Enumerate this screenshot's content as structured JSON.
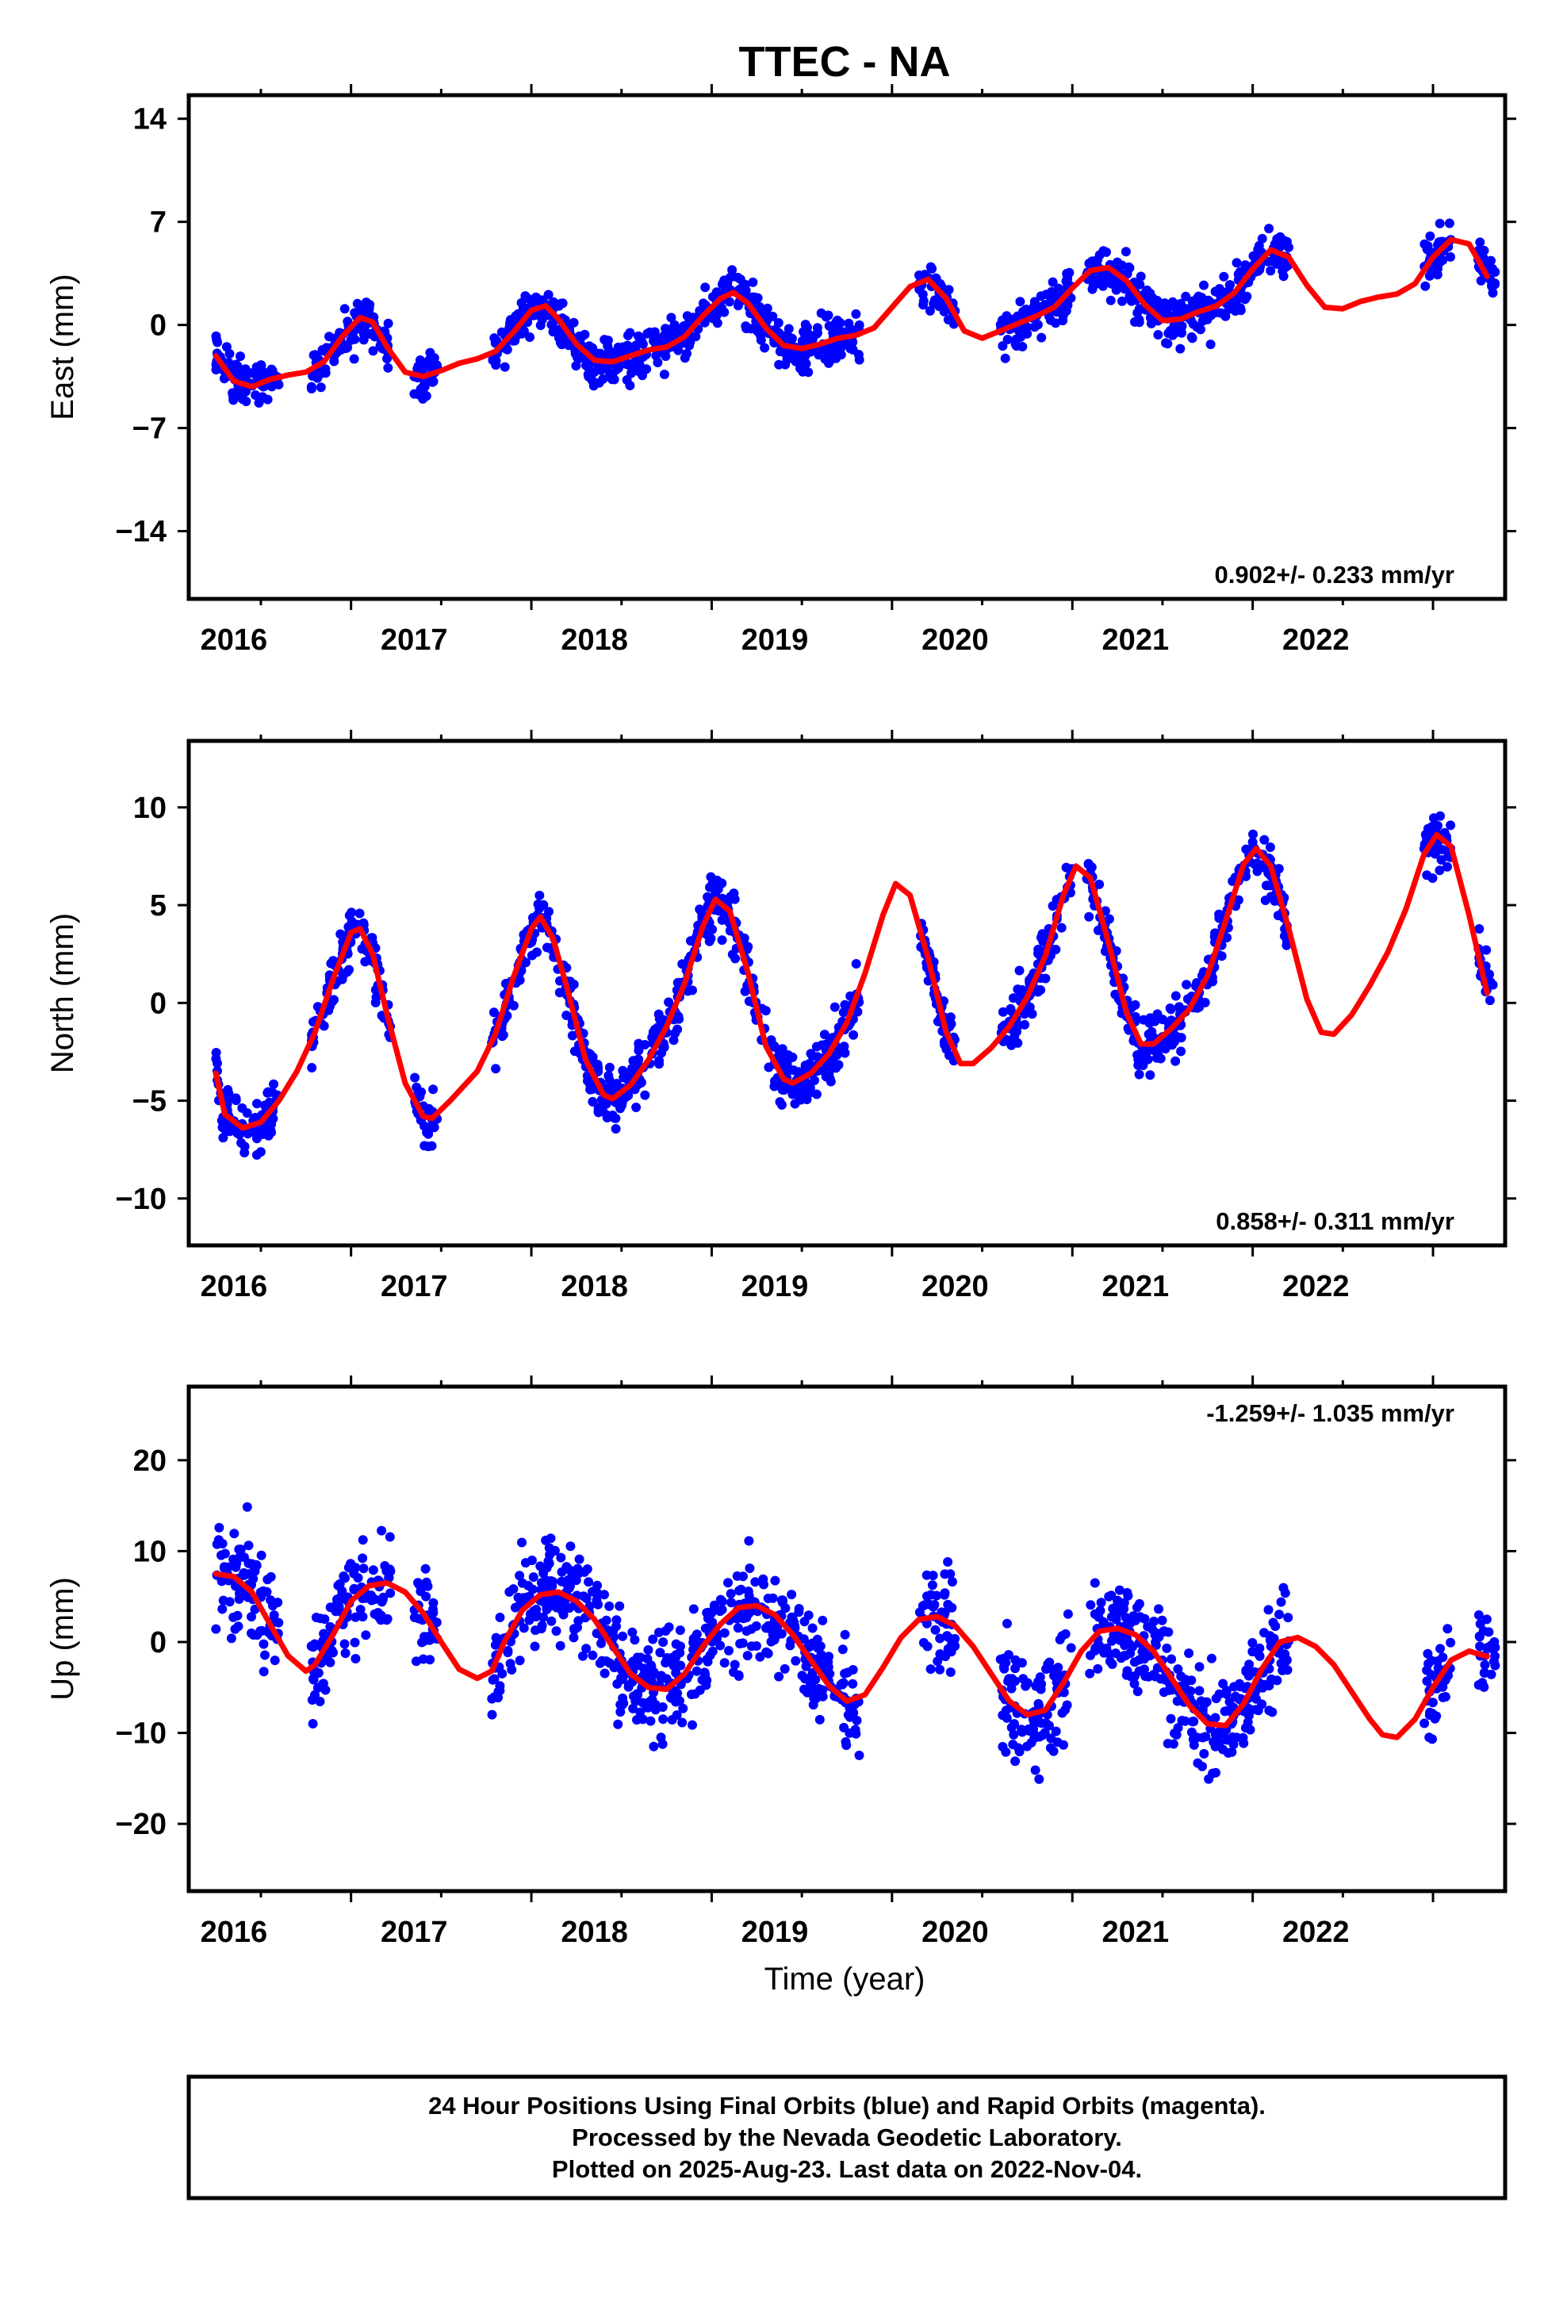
{
  "chart_data": {
    "type": "scatter",
    "title": "TTEC - NA",
    "x_tick_labels": [
      "2016",
      "2017",
      "2018",
      "2019",
      "2020",
      "2021",
      "2022"
    ],
    "xlim": [
      2015.6,
      2022.9
    ],
    "xlabel": "Time (year)",
    "point_color": "#0000ff",
    "model_color": "#ff0000",
    "panels": [
      {
        "name": "East",
        "ylabel": "East (mm)",
        "ylim": [
          -18.6,
          15.6
        ],
        "y_ticks": [
          14,
          7,
          0,
          -7,
          -14
        ],
        "y_tick_labels": [
          "14",
          "7",
          "0",
          "−7",
          "−14"
        ],
        "rate": "0.902+/- 0.233 mm/yr",
        "rate_position": "bottom-right",
        "model": {
          "x": [
            2015.75,
            2015.85,
            2015.95,
            2016.05,
            2016.15,
            2016.25,
            2016.35,
            2016.45,
            2016.55,
            2016.62,
            2016.7,
            2016.8,
            2016.9,
            2017.0,
            2017.1,
            2017.2,
            2017.3,
            2017.4,
            2017.5,
            2017.58,
            2017.65,
            2017.75,
            2017.85,
            2017.95,
            2018.05,
            2018.15,
            2018.25,
            2018.35,
            2018.45,
            2018.55,
            2018.62,
            2018.7,
            2018.8,
            2018.9,
            2019.0,
            2019.1,
            2019.2,
            2019.3,
            2019.4,
            2019.5,
            2019.6,
            2019.7,
            2019.8,
            2019.9,
            2020.0,
            2020.1,
            2020.2,
            2020.3,
            2020.4,
            2020.5,
            2020.6,
            2020.7,
            2020.8,
            2020.9,
            2021.0,
            2021.1,
            2021.2,
            2021.3,
            2021.4,
            2021.5,
            2021.6,
            2021.7,
            2021.8,
            2021.9,
            2022.0,
            2022.1,
            2022.2,
            2022.3,
            2022.4,
            2022.5,
            2022.6,
            2022.7,
            2022.8
          ],
          "y": [
            -2.1,
            -3.8,
            -4.2,
            -3.7,
            -3.4,
            -3.2,
            -2.5,
            -0.8,
            0.5,
            0.2,
            -1.5,
            -3.2,
            -3.5,
            -3.1,
            -2.6,
            -2.3,
            -1.8,
            -0.5,
            1.0,
            1.3,
            0.4,
            -1.3,
            -2.4,
            -2.5,
            -2.1,
            -1.7,
            -1.5,
            -0.8,
            0.6,
            1.8,
            2.2,
            1.5,
            -0.2,
            -1.4,
            -1.6,
            -1.3,
            -0.9,
            -0.7,
            -0.2,
            1.2,
            2.6,
            3.1,
            1.8,
            -0.4,
            -0.9,
            -0.4,
            0.1,
            0.6,
            1.2,
            2.5,
            3.7,
            3.9,
            3.0,
            1.4,
            0.3,
            0.4,
            0.9,
            1.3,
            2.2,
            3.8,
            5.1,
            4.6,
            2.7,
            1.2,
            1.1,
            1.6,
            1.9,
            2.1,
            2.8,
            4.6,
            5.8,
            5.5,
            3.3
          ]
        }
      },
      {
        "name": "North",
        "ylabel": "North (mm)",
        "ylim": [
          -12.4,
          13.4
        ],
        "y_ticks": [
          10,
          5,
          0,
          -5,
          -10
        ],
        "y_tick_labels": [
          "10",
          "5",
          "0",
          "−5",
          "−10"
        ],
        "rate": "0.858+/- 0.311 mm/yr",
        "rate_position": "bottom-right",
        "model": {
          "x": [
            2015.75,
            2015.8,
            2015.9,
            2016.0,
            2016.1,
            2016.2,
            2016.3,
            2016.4,
            2016.5,
            2016.55,
            2016.62,
            2016.7,
            2016.8,
            2016.9,
            2016.95,
            2017.05,
            2017.2,
            2017.3,
            2017.4,
            2017.5,
            2017.55,
            2017.62,
            2017.7,
            2017.8,
            2017.9,
            2017.95,
            2018.05,
            2018.15,
            2018.25,
            2018.35,
            2018.45,
            2018.52,
            2018.6,
            2018.7,
            2018.8,
            2018.9,
            2018.95,
            2019.05,
            2019.15,
            2019.25,
            2019.35,
            2019.45,
            2019.52,
            2019.6,
            2019.7,
            2019.8,
            2019.88,
            2019.95,
            2020.05,
            2020.15,
            2020.25,
            2020.35,
            2020.45,
            2020.52,
            2020.6,
            2020.7,
            2020.8,
            2020.88,
            2020.95,
            2021.05,
            2021.15,
            2021.25,
            2021.35,
            2021.45,
            2021.52,
            2021.6,
            2021.7,
            2021.8,
            2021.88,
            2021.95,
            2022.05,
            2022.15,
            2022.25,
            2022.35,
            2022.45,
            2022.52,
            2022.6,
            2022.7,
            2022.8
          ],
          "y": [
            -3.6,
            -5.7,
            -6.4,
            -6.1,
            -5.0,
            -3.5,
            -1.5,
            1.2,
            3.6,
            3.8,
            2.5,
            -0.6,
            -4.1,
            -5.8,
            -5.9,
            -5.0,
            -3.5,
            -1.6,
            1.3,
            3.8,
            4.4,
            3.3,
            0.7,
            -2.9,
            -4.7,
            -4.9,
            -4.2,
            -2.9,
            -1.2,
            1.0,
            3.9,
            5.3,
            4.7,
            1.6,
            -2.2,
            -3.9,
            -4.1,
            -3.6,
            -2.6,
            -1.0,
            1.5,
            4.5,
            6.1,
            5.5,
            2.3,
            -1.5,
            -3.1,
            -3.1,
            -2.3,
            -1.2,
            0.3,
            2.4,
            5.5,
            7.0,
            6.4,
            3.1,
            -0.5,
            -2.1,
            -2.1,
            -1.3,
            -0.3,
            1.4,
            4.2,
            7.1,
            7.9,
            7.0,
            3.8,
            0.2,
            -1.5,
            -1.6,
            -0.6,
            0.9,
            2.6,
            4.8,
            7.6,
            8.6,
            8.0,
            4.5,
            0.5
          ]
        }
      },
      {
        "name": "Up",
        "ylabel": "Up (mm)",
        "ylim": [
          -27.4,
          28.1
        ],
        "y_ticks": [
          20,
          10,
          0,
          -10,
          -20
        ],
        "y_tick_labels": [
          "20",
          "10",
          "0",
          "−10",
          "−20"
        ],
        "rate": "-1.259+/- 1.035 mm/yr",
        "rate_position": "top-right",
        "model": {
          "x": [
            2015.75,
            2015.85,
            2015.95,
            2016.05,
            2016.15,
            2016.25,
            2016.3,
            2016.4,
            2016.5,
            2016.6,
            2016.7,
            2016.8,
            2016.9,
            2017.0,
            2017.1,
            2017.2,
            2017.28,
            2017.35,
            2017.45,
            2017.55,
            2017.65,
            2017.75,
            2017.85,
            2017.95,
            2018.05,
            2018.15,
            2018.25,
            2018.35,
            2018.45,
            2018.55,
            2018.65,
            2018.75,
            2018.85,
            2018.95,
            2019.05,
            2019.15,
            2019.25,
            2019.35,
            2019.45,
            2019.55,
            2019.65,
            2019.75,
            2019.85,
            2019.95,
            2020.05,
            2020.15,
            2020.25,
            2020.35,
            2020.45,
            2020.55,
            2020.65,
            2020.75,
            2020.85,
            2020.95,
            2021.05,
            2021.15,
            2021.25,
            2021.35,
            2021.45,
            2021.55,
            2021.65,
            2021.75,
            2021.85,
            2021.95,
            2022.05,
            2022.15,
            2022.22,
            2022.3,
            2022.4,
            2022.5,
            2022.6,
            2022.7,
            2022.8
          ],
          "y": [
            7.5,
            7.2,
            5.5,
            2.0,
            -1.5,
            -3.2,
            -2.5,
            0.8,
            4.5,
            6.2,
            6.5,
            5.5,
            3.2,
            0.0,
            -3.0,
            -4.0,
            -3.2,
            0.0,
            3.5,
            5.2,
            5.5,
            4.5,
            2.5,
            -0.5,
            -3.5,
            -5.0,
            -5.2,
            -3.5,
            -0.5,
            2.0,
            3.8,
            4.0,
            3.0,
            0.8,
            -2.0,
            -4.8,
            -6.5,
            -5.8,
            -2.8,
            0.5,
            2.5,
            2.8,
            1.8,
            -0.5,
            -3.5,
            -6.5,
            -8.0,
            -7.5,
            -4.5,
            -1.0,
            1.2,
            1.5,
            0.8,
            -1.0,
            -4.0,
            -7.0,
            -9.0,
            -9.2,
            -6.8,
            -3.0,
            0.0,
            0.5,
            -0.5,
            -2.5,
            -5.5,
            -8.5,
            -10.2,
            -10.5,
            -8.5,
            -5.0,
            -2.0,
            -1.0,
            -1.6
          ]
        }
      }
    ]
  },
  "footer": {
    "line1": "24 Hour Positions Using Final Orbits (blue) and Rapid Orbits (magenta).",
    "line2": "Processed by the Nevada Geodetic Laboratory.",
    "line3": "Plotted on 2025-Aug-23. Last data on 2022-Nov-04."
  }
}
